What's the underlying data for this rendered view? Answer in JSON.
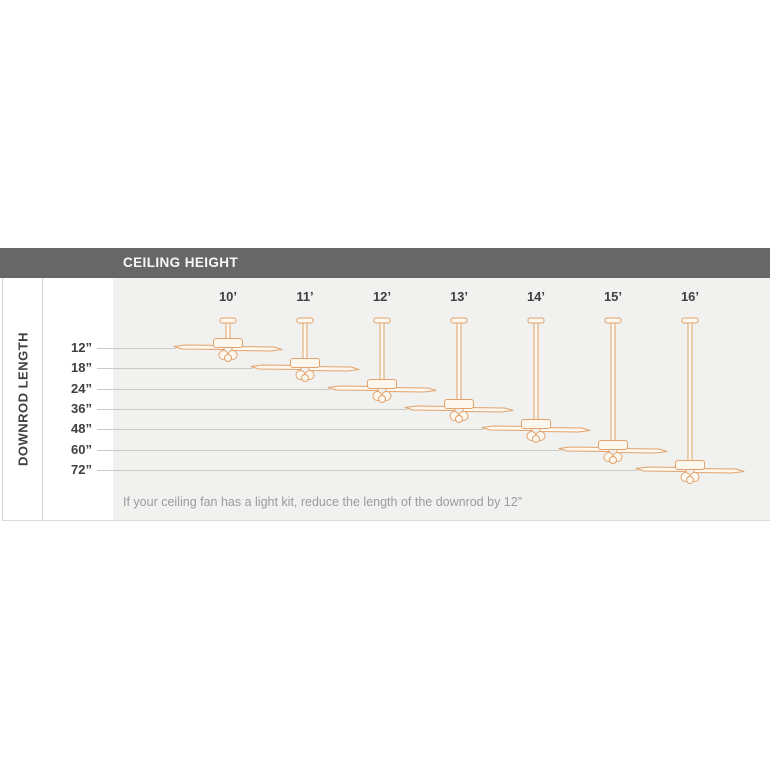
{
  "header": {
    "title": "CEILING HEIGHT"
  },
  "sidebar": {
    "title": "DOWNROD LENGTH"
  },
  "note": "If your ceiling fan has a light kit, reduce the length of the downrod by 12”",
  "diagram": {
    "type": "correspondence-diagram",
    "ceiling_heights": [
      "10’",
      "11’",
      "12’",
      "13’",
      "14’",
      "15’",
      "16’"
    ],
    "downrod_lengths": [
      "12”",
      "18”",
      "24”",
      "36”",
      "48”",
      "60”",
      "72”"
    ],
    "pairs": [
      {
        "ceiling_height": "10’",
        "downrod_length": "12”"
      },
      {
        "ceiling_height": "11’",
        "downrod_length": "18”"
      },
      {
        "ceiling_height": "12’",
        "downrod_length": "24”"
      },
      {
        "ceiling_height": "13’",
        "downrod_length": "36”"
      },
      {
        "ceiling_height": "14’",
        "downrod_length": "48”"
      },
      {
        "ceiling_height": "15’",
        "downrod_length": "60”"
      },
      {
        "ceiling_height": "16’",
        "downrod_length": "72”"
      }
    ]
  },
  "colors": {
    "header_bg": "#676767",
    "header_text": "#f8f8f8",
    "panel_bg": "#f1f1ef",
    "label_text": "#3f3f3f",
    "note_text": "#9b9b9b",
    "gridline": "#c9c9c7",
    "border": "#d9d9d7",
    "fan_stroke": "#e0a26e",
    "fan_fill": "#fdf7ee"
  }
}
